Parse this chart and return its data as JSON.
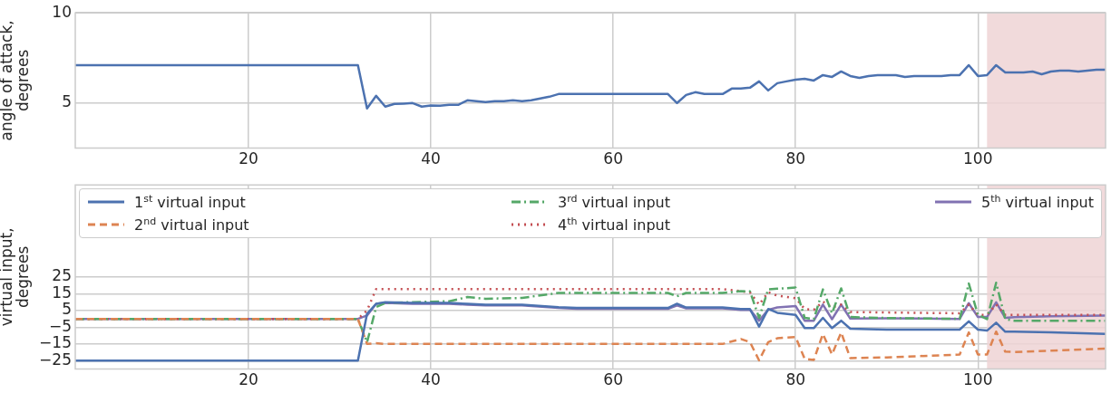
{
  "chart_data": [
    {
      "type": "line",
      "ylabel": "angle of attack, degrees",
      "xlim": [
        1,
        114
      ],
      "xticks": [
        20,
        40,
        60,
        80,
        100
      ],
      "ylim": [
        2.5,
        10
      ],
      "yticks": [
        5,
        10
      ],
      "grid": true,
      "legend": false,
      "marker": "none",
      "bands": [
        {
          "axis": "x",
          "from": 101,
          "to": 114,
          "color": "#eed3d5"
        }
      ],
      "series": [
        {
          "color": "#4c72b0",
          "line_style": "solid",
          "x": [
            1,
            32,
            33,
            34,
            35,
            36,
            37,
            38,
            39,
            40,
            41,
            42,
            43,
            44,
            45,
            46,
            47,
            48,
            49,
            50,
            51,
            52,
            53,
            54,
            60,
            66,
            67,
            68,
            69,
            70,
            71,
            72,
            73,
            74,
            75,
            76,
            77,
            78,
            79,
            80,
            81,
            82,
            83,
            84,
            85,
            86,
            87,
            88,
            89,
            90,
            91,
            92,
            93,
            94,
            95,
            96,
            97,
            98,
            99,
            100,
            101,
            102,
            103,
            104,
            105,
            106,
            107,
            108,
            109,
            110,
            111,
            112,
            113,
            114
          ],
          "values": [
            7.1,
            7.1,
            4.7,
            5.4,
            4.8,
            4.95,
            4.97,
            5.0,
            4.8,
            4.87,
            4.85,
            4.9,
            4.9,
            5.15,
            5.1,
            5.05,
            5.1,
            5.1,
            5.15,
            5.1,
            5.15,
            5.25,
            5.35,
            5.5,
            5.5,
            5.5,
            5.0,
            5.45,
            5.6,
            5.5,
            5.5,
            5.5,
            5.8,
            5.8,
            5.85,
            6.2,
            5.7,
            6.1,
            6.2,
            6.3,
            6.35,
            6.25,
            6.55,
            6.45,
            6.75,
            6.5,
            6.4,
            6.5,
            6.55,
            6.55,
            6.55,
            6.45,
            6.5,
            6.5,
            6.5,
            6.5,
            6.55,
            6.55,
            7.1,
            6.5,
            6.55,
            7.1,
            6.7,
            6.7,
            6.7,
            6.75,
            6.6,
            6.75,
            6.8,
            6.8,
            6.75,
            6.8,
            6.85,
            6.85
          ]
        }
      ]
    },
    {
      "type": "line",
      "ylabel": "virtual input, degrees",
      "xlim": [
        1,
        114
      ],
      "xticks": [
        20,
        40,
        60,
        80,
        100
      ],
      "ylim": [
        -30,
        80
      ],
      "yticks": [
        -25,
        -15,
        -5,
        5,
        15,
        25
      ],
      "grid": true,
      "legend": "top",
      "marker": "none",
      "bands": [
        {
          "axis": "x",
          "from": 101,
          "to": 114,
          "color": "#eed3d5"
        }
      ],
      "x": [
        1,
        32,
        33,
        34,
        35,
        38,
        42,
        44,
        46,
        50,
        54,
        56,
        60,
        66,
        67,
        68,
        72,
        74,
        75,
        76,
        77,
        78,
        80,
        81,
        82,
        83,
        84,
        85,
        86,
        90,
        98,
        99,
        100,
        101,
        102,
        103,
        104,
        108,
        114
      ],
      "series": [
        {
          "name": "1$^{st}$ virtual input",
          "color": "#4c72b0",
          "line_style": "solid",
          "values": [
            -25,
            -25,
            3,
            9,
            10,
            9.5,
            9.5,
            9,
            8.5,
            8.5,
            7,
            6.5,
            6.5,
            6.5,
            9,
            6.8,
            6.8,
            5.9,
            5.9,
            -4.6,
            5.9,
            3.6,
            2.4,
            -5.5,
            -5.5,
            0.6,
            -5.5,
            -1.1,
            -5.9,
            -6.4,
            -6.4,
            -1.5,
            -6.4,
            -7,
            -2.3,
            -7.7,
            -7.7,
            -8,
            -9
          ]
        },
        {
          "name": "2$^{nd}$ virtual input",
          "color": "#dd8452",
          "line_style": "dashed",
          "values": [
            0,
            0,
            -15,
            -14.5,
            -15,
            -15,
            -15,
            -15,
            -15,
            -15,
            -15,
            -15,
            -15,
            -15,
            -15,
            -15,
            -15,
            -12,
            -13.9,
            -24.8,
            -13.9,
            -11.6,
            -10.8,
            -23.9,
            -24.5,
            -9,
            -21.3,
            -8.1,
            -23.4,
            -23,
            -21.3,
            -8.1,
            -21.3,
            -21.3,
            -7.6,
            -19.6,
            -19.8,
            -19,
            -17.8
          ]
        },
        {
          "name": "3$^{rd}$ virtual input",
          "color": "#55a868",
          "line_style": "dashdot",
          "values": [
            0,
            0,
            -14,
            7,
            9.5,
            10,
            10.5,
            13,
            12,
            12.5,
            15.5,
            15.5,
            15.5,
            15.5,
            13.5,
            15.5,
            15.5,
            16.5,
            16.4,
            0.6,
            17.6,
            18,
            18.7,
            0.6,
            -0.2,
            17.6,
            3.3,
            18.2,
            1.1,
            0.5,
            0,
            21.1,
            2.4,
            -0.2,
            21.6,
            -0.2,
            -1.1,
            -1.1,
            -1.1
          ]
        },
        {
          "name": "4$^{th}$ virtual input",
          "color": "#c44e52",
          "line_style": "dotted",
          "values": [
            0,
            0,
            5,
            17.8,
            17.8,
            17.8,
            17.8,
            17.8,
            17.8,
            17.8,
            17.8,
            17.8,
            17.8,
            17.8,
            17.8,
            17.8,
            17.8,
            16.5,
            15.9,
            8.5,
            15.9,
            13.8,
            12.4,
            5.9,
            5.4,
            10.3,
            6.8,
            8.5,
            4.1,
            3.8,
            3.3,
            8.5,
            2.4,
            2.4,
            8.5,
            2.4,
            2.4,
            2.4,
            2.4
          ]
        },
        {
          "name": "5$^{th}$ virtual input",
          "color": "#8172b2",
          "line_style": "solid",
          "values": [
            0,
            0,
            2,
            9,
            9.5,
            9,
            9,
            8.5,
            8,
            8,
            6.5,
            6,
            6,
            6,
            8,
            6.3,
            6.3,
            5.4,
            5.4,
            -1.1,
            5.4,
            6.8,
            7.7,
            -1.1,
            -1.1,
            8.5,
            -0.2,
            8.5,
            0.2,
            0.4,
            0,
            9.4,
            1.1,
            1.1,
            9.9,
            0.6,
            1,
            1.5,
            2
          ]
        }
      ]
    }
  ]
}
